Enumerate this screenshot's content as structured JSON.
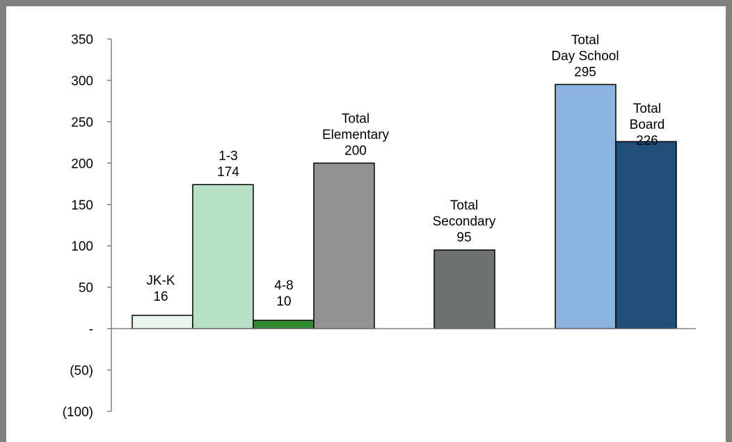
{
  "chart_data": {
    "type": "bar",
    "title": "",
    "xlabel": "",
    "ylabel": "",
    "ylim": [
      -100,
      350
    ],
    "y_ticks": [
      {
        "value": 350,
        "label": "350"
      },
      {
        "value": 300,
        "label": "300"
      },
      {
        "value": 250,
        "label": "250"
      },
      {
        "value": 200,
        "label": "200"
      },
      {
        "value": 150,
        "label": "150"
      },
      {
        "value": 100,
        "label": "100"
      },
      {
        "value": 50,
        "label": "50"
      },
      {
        "value": 0,
        "label": "-"
      },
      {
        "value": -50,
        "label": "(50)"
      },
      {
        "value": -100,
        "label": "(100)"
      }
    ],
    "grid": false,
    "legend": "none",
    "bars": [
      {
        "category": "JK-K",
        "value": 16,
        "color": "#eaf4ea",
        "label_lines": [
          "JK-K",
          "16"
        ]
      },
      {
        "category": "1-3",
        "value": 174,
        "color": "#b8e0c5",
        "label_lines": [
          "1-3",
          "174"
        ]
      },
      {
        "category": "4-8",
        "value": 10,
        "color": "#2e8b2e",
        "label_lines": [
          "4-8",
          "10"
        ]
      },
      {
        "category": "Total Elementary",
        "value": 200,
        "color": "#919392",
        "label_lines": [
          "Total",
          "Elementary",
          "200"
        ]
      },
      {
        "category": "Total Secondary",
        "value": 95,
        "color": "#6d7170",
        "label_lines": [
          "Total",
          "Secondary",
          "95"
        ]
      },
      {
        "category": "Total Day School",
        "value": 295,
        "color": "#8cb4e0",
        "label_lines": [
          "Total",
          "Day School",
          "295"
        ]
      },
      {
        "category": "Total Board",
        "value": 226,
        "color": "#1f4e79",
        "label_lines": [
          "Total",
          "Board",
          "226"
        ]
      }
    ]
  }
}
